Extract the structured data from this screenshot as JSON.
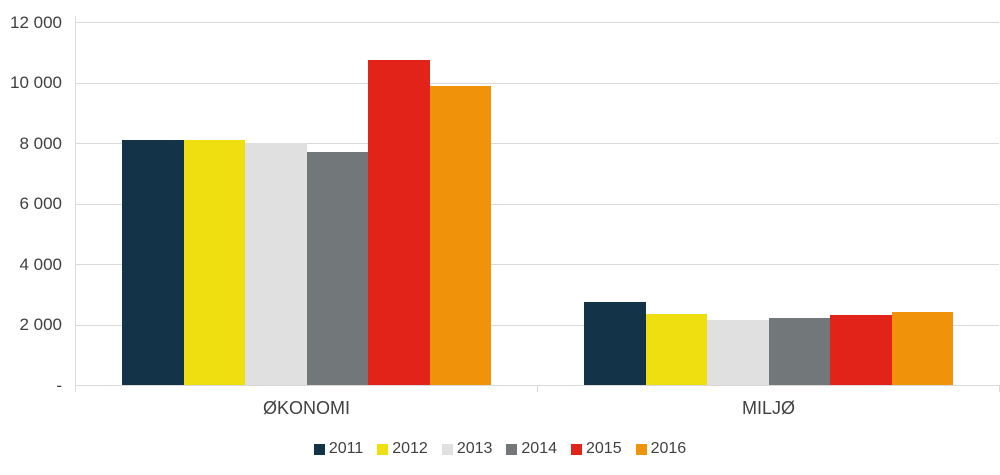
{
  "chart_data": {
    "type": "bar",
    "title": "",
    "xlabel": "",
    "ylabel": "",
    "categories": [
      "ØKONOMI",
      "MILJØ"
    ],
    "series": [
      {
        "name": "2011",
        "color": "#133349",
        "values": [
          8100,
          2750
        ]
      },
      {
        "name": "2012",
        "color": "#EFDF10",
        "values": [
          8100,
          2350
        ]
      },
      {
        "name": "2013",
        "color": "#E0E0E0",
        "values": [
          8000,
          2150
        ]
      },
      {
        "name": "2014",
        "color": "#72787A",
        "values": [
          7700,
          2200
        ]
      },
      {
        "name": "2015",
        "color": "#E2231A",
        "values": [
          10750,
          2300
        ]
      },
      {
        "name": "2016",
        "color": "#F0920A",
        "values": [
          9900,
          2400
        ]
      }
    ],
    "ylim": [
      0,
      12000
    ],
    "yticks": [
      {
        "value": 0,
        "label": "-"
      },
      {
        "value": 2000,
        "label": "2 000"
      },
      {
        "value": 4000,
        "label": "4 000"
      },
      {
        "value": 6000,
        "label": "6 000"
      },
      {
        "value": 8000,
        "label": "8 000"
      },
      {
        "value": 10000,
        "label": "10 000"
      },
      {
        "value": 12000,
        "label": "12 000"
      }
    ],
    "grid": "horizontal",
    "legend_position": "bottom",
    "colors": {
      "gridline": "#D9D9D9",
      "axis": "#D9D9D9",
      "text": "#404040",
      "background": "#FFFFFF"
    }
  }
}
